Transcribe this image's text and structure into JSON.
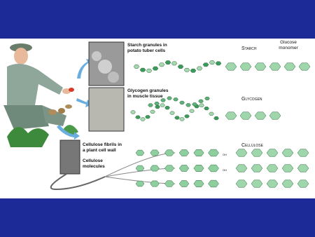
{
  "starch": {
    "photo_label": [
      "Starch granules in",
      "potato tuber cells"
    ],
    "name": "Starch",
    "monomer_label": [
      "Glucose",
      "monomer"
    ]
  },
  "glycogen": {
    "photo_label": [
      "Glycogen granules",
      "in muscle tissue"
    ],
    "name": "Glycogen"
  },
  "cellulose": {
    "photo_label": [
      "Cellulose fibrils in",
      "a plant cell wall"
    ],
    "molecules_label": [
      "Cellulose",
      "molecules"
    ],
    "name": "Cellulose",
    "end_group": "OH"
  }
}
